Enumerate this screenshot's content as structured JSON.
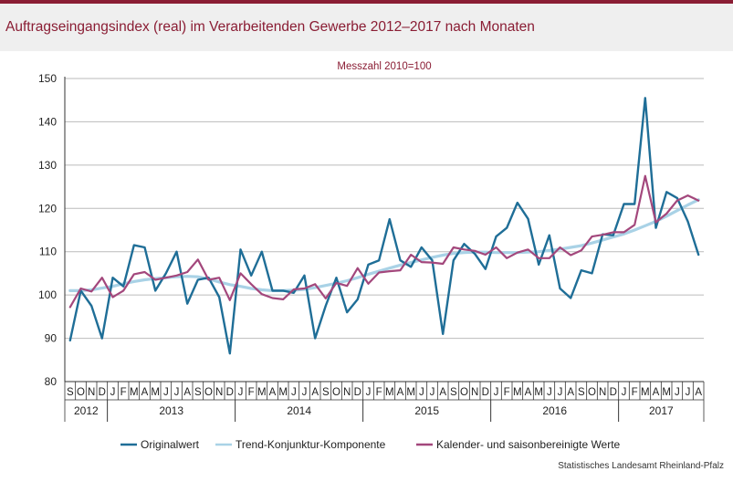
{
  "header": {
    "title": "Auftragseingangsindex (real) im Verarbeitenden Gewerbe 2012–2017 nach Monaten"
  },
  "footer": {
    "source": "Statistisches Landesamt Rheinland-Pfalz"
  },
  "colors": {
    "original": "#1f6e97",
    "trend": "#a9d2e6",
    "adjusted": "#a3477c",
    "header_bar": "#8a1d34",
    "grid": "#bbbbbb"
  },
  "chart_data": {
    "type": "line",
    "subtitle": "Messzahl 2010=100",
    "ylim": [
      80,
      150
    ],
    "yticks": [
      80,
      90,
      100,
      110,
      120,
      130,
      140,
      150
    ],
    "grid": "horizontal",
    "legend_position": "bottom",
    "x": [
      "S",
      "O",
      "N",
      "D",
      "J",
      "F",
      "M",
      "A",
      "M",
      "J",
      "J",
      "A",
      "S",
      "O",
      "N",
      "D",
      "J",
      "F",
      "M",
      "A",
      "M",
      "J",
      "J",
      "A",
      "S",
      "O",
      "N",
      "D",
      "J",
      "F",
      "M",
      "A",
      "M",
      "J",
      "J",
      "A",
      "S",
      "O",
      "N",
      "D",
      "J",
      "F",
      "M",
      "A",
      "M",
      "J",
      "J",
      "A",
      "S",
      "O",
      "N",
      "D",
      "J",
      "F",
      "M",
      "A",
      "M",
      "J",
      "J",
      "A"
    ],
    "years": [
      {
        "label": "2012",
        "start": 0,
        "end": 3
      },
      {
        "label": "2013",
        "start": 4,
        "end": 15
      },
      {
        "label": "2014",
        "start": 16,
        "end": 27
      },
      {
        "label": "2015",
        "start": 28,
        "end": 39
      },
      {
        "label": "2016",
        "start": 40,
        "end": 51
      },
      {
        "label": "2017",
        "start": 52,
        "end": 59
      }
    ],
    "series": [
      {
        "name": "Originalwert",
        "color_key": "original",
        "values": [
          89.5,
          101,
          97.5,
          90,
          104,
          102,
          111.5,
          111,
          101,
          105,
          110,
          98,
          103.5,
          104,
          99.5,
          86.5,
          110.5,
          104.5,
          110,
          101,
          101,
          100.5,
          104.5,
          90,
          97.5,
          104,
          96,
          99,
          107,
          108,
          117.5,
          108,
          106.5,
          111,
          108,
          91,
          108,
          111.8,
          109.5,
          106,
          113.5,
          115.5,
          121.3,
          117.6,
          107,
          113.8,
          101.5,
          99.3,
          105.7,
          105,
          114,
          113.8,
          121,
          121,
          145.5,
          115.5,
          123.8,
          122.4,
          117,
          109.3
        ]
      },
      {
        "name": "Trend-Konjunktur-Komponente",
        "color_key": "trend",
        "values": [
          101,
          101,
          101.2,
          101.6,
          102,
          102.6,
          103.1,
          103.5,
          103.8,
          104,
          104.2,
          104.3,
          104.2,
          103.7,
          103,
          102.4,
          102,
          101.5,
          101.2,
          101,
          101,
          101.1,
          101.3,
          101.7,
          102.2,
          102.7,
          103.3,
          104,
          104.8,
          105.5,
          106.2,
          106.9,
          107.5,
          108.1,
          108.7,
          109.2,
          109.6,
          109.8,
          109.9,
          109.9,
          109.8,
          109.8,
          109.8,
          109.9,
          110,
          110.3,
          110.6,
          111,
          111.4,
          112,
          112.7,
          113.4,
          114.1,
          115,
          116,
          117,
          118.2,
          119.5,
          120.8,
          122
        ]
      },
      {
        "name": "Kalender- und saisonbereinigte Werte",
        "color_key": "adjusted",
        "values": [
          97.2,
          101.5,
          100.8,
          104,
          99.5,
          101,
          104.8,
          105.3,
          103.5,
          104,
          104.5,
          105.3,
          108.2,
          103.5,
          104,
          98.8,
          105,
          102.5,
          100.2,
          99.3,
          99,
          101.3,
          101.5,
          102.5,
          99.2,
          102.8,
          102.1,
          106.2,
          102.6,
          105.2,
          105.5,
          105.7,
          109.3,
          107.6,
          107.5,
          107.2,
          111,
          110.5,
          110.2,
          109.3,
          111,
          108.5,
          109.8,
          110.5,
          108.5,
          108.5,
          111,
          109.2,
          110.3,
          113.5,
          113.9,
          114.5,
          114.5,
          116.2,
          127.5,
          116.8,
          118.8,
          121.8,
          123,
          121.8
        ]
      }
    ]
  }
}
